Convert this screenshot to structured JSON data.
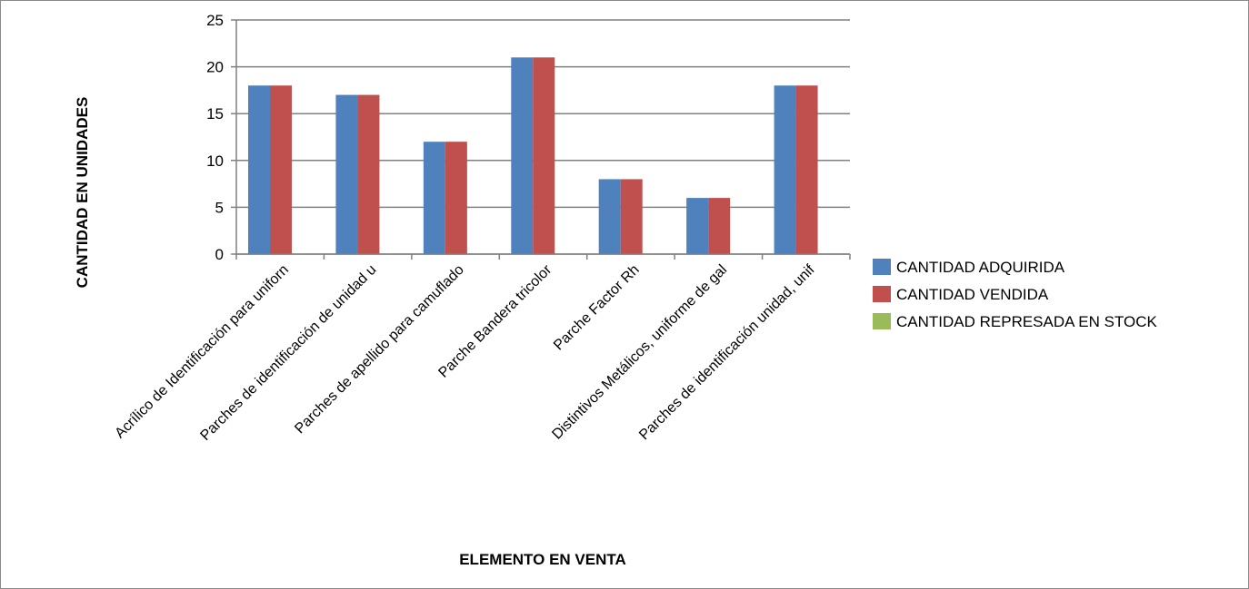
{
  "chart_data": {
    "type": "bar",
    "categories": [
      "Acrílico de Identificación para uniforn",
      "Parches de identificación de unidad u",
      "Parches de apellido para camuflado",
      "Parche Bandera tricolor",
      "Parche Factor Rh",
      "Distintivos Metálicos, uniforme de gal",
      "Parches de identificación unidad, unif"
    ],
    "series": [
      {
        "name": "CANTIDAD ADQUIRIDA",
        "values": [
          18,
          17,
          12,
          21,
          8,
          6,
          18
        ],
        "color": "#4f81bd"
      },
      {
        "name": "CANTIDAD VENDIDA",
        "values": [
          18,
          17,
          12,
          21,
          8,
          6,
          18
        ],
        "color": "#c0504d"
      },
      {
        "name": "CANTIDAD REPRESADA EN STOCK",
        "values": [
          0,
          0,
          0,
          0,
          0,
          0,
          0
        ],
        "color": "#9bbb59"
      }
    ],
    "xlabel": "ELEMENTO EN VENTA",
    "ylabel": "CANTIDAD EN UNIDADES",
    "ylim": [
      0,
      25
    ],
    "yticks": [
      0,
      5,
      10,
      15,
      20,
      25
    ],
    "grid": true,
    "legend": "right"
  }
}
